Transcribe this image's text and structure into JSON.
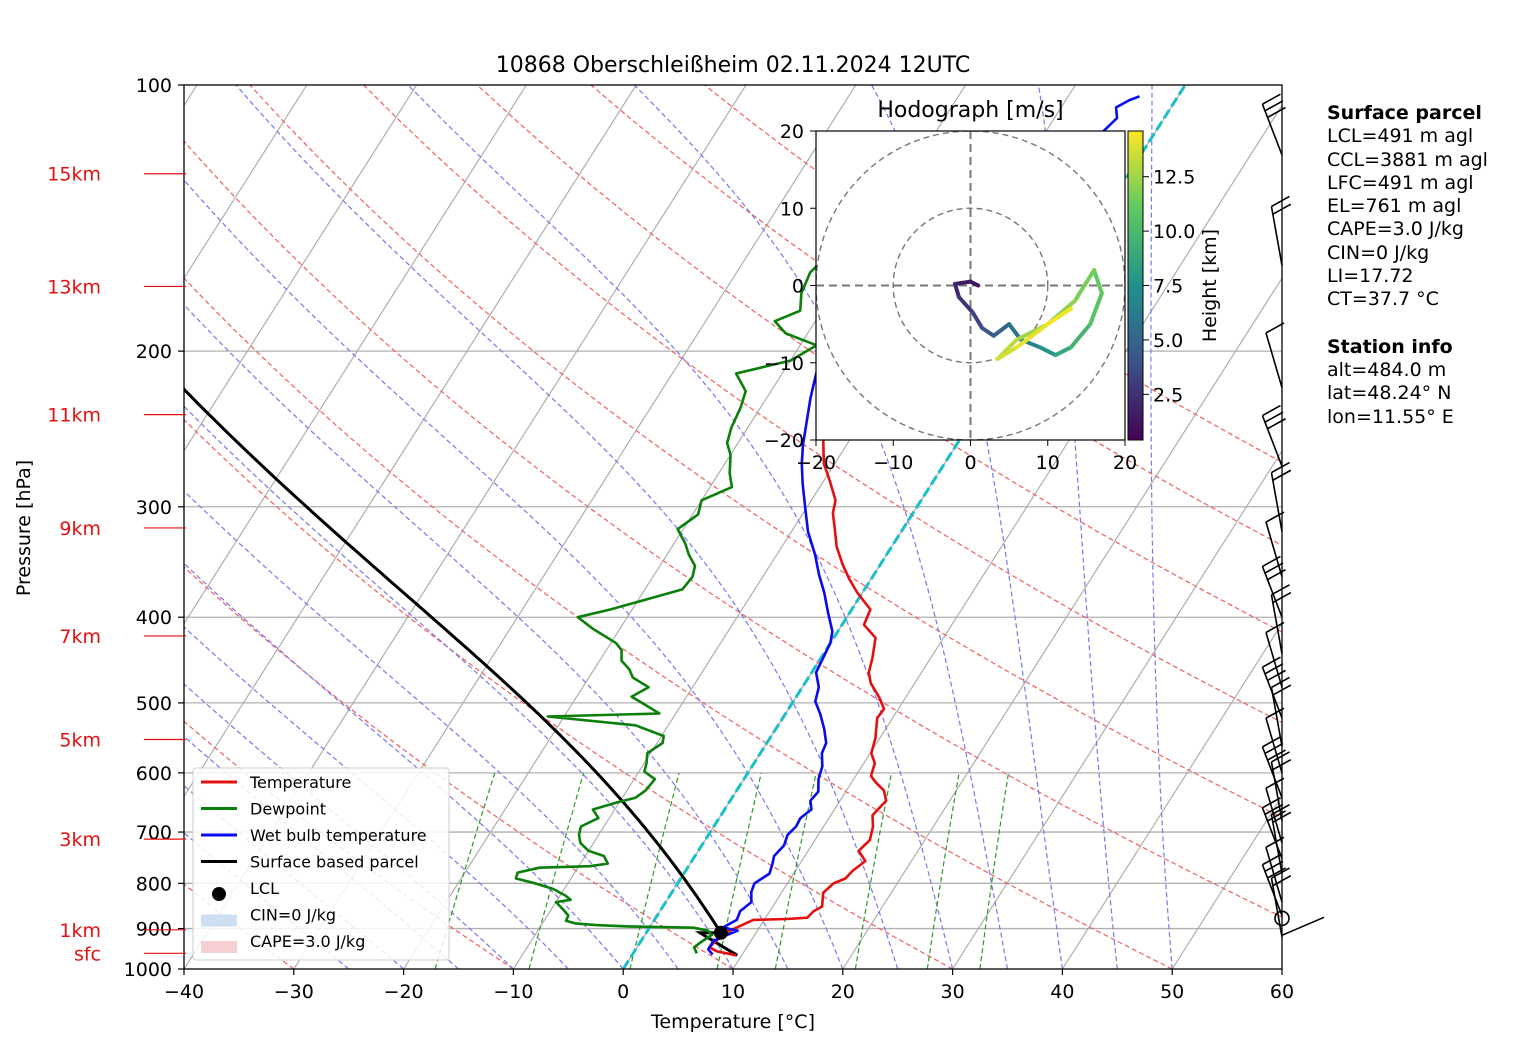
{
  "chart_data": {
    "type": "line",
    "title": "10868 Oberschleißheim 02.11.2024 12UTC",
    "xlabel": "Temperature [°C]",
    "ylabel": "Pressure [hPa]",
    "xlim": [
      -40,
      60
    ],
    "ylim": [
      1000,
      100
    ],
    "y_scale": "log",
    "x_ticks": [
      -40,
      -30,
      -20,
      -10,
      0,
      10,
      20,
      30,
      40,
      50,
      60
    ],
    "y_ticks": [
      1000,
      900,
      800,
      700,
      600,
      500,
      400,
      300,
      200,
      100
    ],
    "height_labels": [
      {
        "label": "sfc",
        "p": 960
      },
      {
        "label": "1km",
        "p": 903
      },
      {
        "label": "3km",
        "p": 713
      },
      {
        "label": "5km",
        "p": 550
      },
      {
        "label": "7km",
        "p": 420
      },
      {
        "label": "9km",
        "p": 317
      },
      {
        "label": "11km",
        "p": 236
      },
      {
        "label": "13km",
        "p": 169
      },
      {
        "label": "15km",
        "p": 126
      }
    ],
    "grid": true,
    "series": [
      {
        "name": "Temperature",
        "color": "#e41010",
        "points": [
          [
            9.5,
            965
          ],
          [
            7.5,
            955
          ],
          [
            6.6,
            945
          ],
          [
            6.8,
            930
          ],
          [
            7.5,
            905
          ],
          [
            9,
            880
          ],
          [
            12,
            878
          ],
          [
            13.8,
            875
          ],
          [
            14,
            860
          ],
          [
            14.5,
            850
          ],
          [
            13.8,
            820
          ],
          [
            14.2,
            800
          ],
          [
            15,
            790
          ],
          [
            15.2,
            775
          ],
          [
            15.8,
            755
          ],
          [
            14.6,
            735
          ],
          [
            15,
            715
          ],
          [
            14.5,
            690
          ],
          [
            13.8,
            670
          ],
          [
            14.2,
            645
          ],
          [
            13.4,
            628
          ],
          [
            12.2,
            615
          ],
          [
            11.4,
            605
          ],
          [
            11,
            585
          ],
          [
            10.1,
            570
          ],
          [
            9.6,
            548
          ],
          [
            8.6,
            520
          ],
          [
            8.7,
            508
          ],
          [
            7.6,
            493
          ],
          [
            6,
            475
          ],
          [
            5.2,
            462
          ],
          [
            4.7,
            445
          ],
          [
            3.8,
            422
          ],
          [
            2,
            408
          ],
          [
            1.7,
            392
          ],
          [
            -0.5,
            375
          ],
          [
            -2,
            362
          ],
          [
            -3.5,
            348
          ],
          [
            -5,
            333
          ],
          [
            -6.2,
            318
          ],
          [
            -7.3,
            305
          ],
          [
            -7.8,
            295
          ],
          [
            -9.5,
            280
          ],
          [
            -11,
            268
          ],
          [
            -12.6,
            250
          ],
          [
            -13.2,
            242
          ],
          [
            -14.6,
            230
          ],
          [
            -15.5,
            218
          ],
          [
            -16.8,
            205
          ]
        ]
      },
      {
        "name": "Dewpoint",
        "color": "#0a7f0a",
        "points": [
          [
            5.8,
            960
          ],
          [
            5.2,
            945
          ],
          [
            5.6,
            930
          ],
          [
            6.1,
            915
          ],
          [
            5.5,
            905
          ],
          [
            4,
            898
          ],
          [
            -2,
            895
          ],
          [
            -5,
            892
          ],
          [
            -7,
            888
          ],
          [
            -8,
            882
          ],
          [
            -8.1,
            870
          ],
          [
            -9,
            855
          ],
          [
            -10,
            840
          ],
          [
            -8.8,
            835
          ],
          [
            -9.5,
            826
          ],
          [
            -11,
            812
          ],
          [
            -13,
            800
          ],
          [
            -15,
            790
          ],
          [
            -15.2,
            778
          ],
          [
            -13.5,
            768
          ],
          [
            -9,
            765
          ],
          [
            -7.5,
            760
          ],
          [
            -8.3,
            745
          ],
          [
            -10,
            735
          ],
          [
            -11.2,
            720
          ],
          [
            -11.8,
            705
          ],
          [
            -12.1,
            690
          ],
          [
            -11,
            675
          ],
          [
            -12,
            660
          ],
          [
            -10.2,
            648
          ],
          [
            -8.8,
            640
          ],
          [
            -8.3,
            628
          ],
          [
            -8.1,
            610
          ],
          [
            -9.5,
            598
          ],
          [
            -9.8,
            585
          ],
          [
            -10.3,
            570
          ],
          [
            -9.5,
            555
          ],
          [
            -9.8,
            545
          ],
          [
            -13,
            530
          ],
          [
            -21.5,
            518
          ],
          [
            -11.5,
            514
          ],
          [
            -13.7,
            500
          ],
          [
            -15,
            492
          ],
          [
            -14,
            480
          ],
          [
            -16,
            468
          ],
          [
            -16.8,
            458
          ],
          [
            -18,
            448
          ],
          [
            -18.6,
            436
          ],
          [
            -19.5,
            428
          ],
          [
            -22.5,
            412
          ],
          [
            -24.5,
            400
          ],
          [
            -22,
            392
          ],
          [
            -19.3,
            382
          ],
          [
            -16.6,
            372
          ],
          [
            -16.4,
            360
          ],
          [
            -16.8,
            350
          ],
          [
            -18,
            340
          ],
          [
            -19,
            330
          ],
          [
            -20.5,
            318
          ],
          [
            -19.5,
            306
          ],
          [
            -20,
            295
          ],
          [
            -18,
            285
          ],
          [
            -19,
            275
          ],
          [
            -20,
            262
          ],
          [
            -21,
            254
          ],
          [
            -21.5,
            244
          ],
          [
            -21.8,
            232
          ],
          [
            -22.3,
            222
          ],
          [
            -24.2,
            212
          ],
          [
            -20,
            205
          ],
          [
            -18.5,
            197
          ],
          [
            -22,
            191
          ],
          [
            -23.7,
            185
          ],
          [
            -22,
            180
          ],
          [
            -22.9,
            172
          ],
          [
            -23.3,
            163
          ],
          [
            -22.8,
            157
          ],
          [
            -21.5,
            150
          ],
          [
            -20.9,
            145
          ],
          [
            -20,
            140
          ],
          [
            -22.6,
            136
          ],
          [
            -26.5,
            132
          ],
          [
            -27,
            126
          ],
          [
            -25.3,
            122
          ],
          [
            -23.5,
            118
          ]
        ]
      },
      {
        "name": "Wet bulb temperature",
        "color": "#0a0aee",
        "points": [
          [
            7.3,
            963
          ],
          [
            6.6,
            950
          ],
          [
            6.6,
            930
          ],
          [
            7.5,
            915
          ],
          [
            8.2,
            905
          ],
          [
            7.2,
            900
          ],
          [
            6.8,
            895
          ],
          [
            7.5,
            880
          ],
          [
            7.3,
            860
          ],
          [
            7.8,
            840
          ],
          [
            7.2,
            818
          ],
          [
            7,
            800
          ],
          [
            7.8,
            780
          ],
          [
            7.5,
            760
          ],
          [
            7.2,
            745
          ],
          [
            7.5,
            725
          ],
          [
            7.2,
            705
          ],
          [
            7.5,
            690
          ],
          [
            7.4,
            675
          ],
          [
            7.9,
            660
          ],
          [
            7.3,
            645
          ],
          [
            7.5,
            630
          ],
          [
            6.8,
            610
          ],
          [
            6.4,
            590
          ],
          [
            5.6,
            570
          ],
          [
            5.4,
            555
          ],
          [
            4.4,
            535
          ],
          [
            3.2,
            515
          ],
          [
            2,
            498
          ],
          [
            1.5,
            480
          ],
          [
            0.4,
            462
          ],
          [
            0.2,
            445
          ],
          [
            0,
            428
          ],
          [
            -0.5,
            415
          ],
          [
            -2,
            395
          ],
          [
            -3.5,
            375
          ],
          [
            -5,
            358
          ],
          [
            -6.5,
            340
          ],
          [
            -8.5,
            320
          ],
          [
            -10.2,
            300
          ],
          [
            -11.8,
            282
          ],
          [
            -13,
            268
          ],
          [
            -14,
            255
          ],
          [
            -15,
            240
          ],
          [
            -16,
            226
          ],
          [
            -16.9,
            212
          ],
          [
            -17.4,
            200
          ],
          [
            -18.1,
            190
          ],
          [
            -18.5,
            180
          ],
          [
            -18.8,
            170
          ],
          [
            -19.5,
            160
          ],
          [
            -19.9,
            150
          ],
          [
            -20.8,
            142
          ],
          [
            -21.8,
            140
          ],
          [
            -18.5,
            138
          ],
          [
            -14.7,
            133
          ],
          [
            -13.2,
            130
          ],
          [
            -10.5,
            126
          ],
          [
            -7.7,
            121
          ],
          [
            -5.5,
            117
          ],
          [
            -4.8,
            113
          ],
          [
            -4.3,
            109
          ],
          [
            -5,
            106
          ],
          [
            -4.2,
            104
          ],
          [
            -3.5,
            103
          ]
        ]
      }
    ],
    "parcel": {
      "name": "Surface based parcel",
      "color": "#000000",
      "surface_p": 965,
      "surface_T": 9.6,
      "lcl_p": 910,
      "lcl_T": 6.8
    },
    "lcl_marker": {
      "name": "LCL",
      "T": 6.8,
      "p": 910
    },
    "isotherm_zero": {
      "T": 0,
      "color": "#1abfc8"
    },
    "shading": [
      {
        "name": "CIN=0 J/kg",
        "color": "#cddff0"
      },
      {
        "name": "CAPE=3.0 J/kg",
        "color": "#f6cfd2"
      }
    ],
    "legend": {
      "position": "bottom-left",
      "entries": [
        "Temperature",
        "Dewpoint",
        "Wet bulb temperature",
        "Surface based parcel",
        "LCL",
        "CIN=0 J/kg",
        "CAPE=3.0 J/kg"
      ]
    },
    "wind_barbs_hPa": [
      965,
      920,
      870,
      840,
      780,
      750,
      720,
      680,
      640,
      600,
      560,
      520,
      480,
      440,
      400,
      360,
      320,
      270,
      220,
      160,
      120
    ],
    "hodograph": {
      "title": "Hodograph [m/s]",
      "xlim": [
        -20,
        20
      ],
      "ylim": [
        -20,
        20
      ],
      "x_ticks": [
        -20,
        -10,
        0,
        10,
        20
      ],
      "y_ticks": [
        20,
        10,
        0,
        -10,
        -20
      ],
      "rings": [
        10,
        20
      ],
      "colorbar_label": "Height [km]",
      "colorbar_ticks": [
        "12.5",
        "10.0",
        "7.5",
        "5.0",
        "2.5"
      ],
      "colormap": "viridis",
      "points": [
        [
          1,
          0,
          0.4
        ],
        [
          0,
          0.5,
          0.8
        ],
        [
          -2,
          0.2,
          1.2
        ],
        [
          -1.5,
          -1.5,
          1.6
        ],
        [
          0.3,
          -3.5,
          2.2
        ],
        [
          1.5,
          -5.5,
          3
        ],
        [
          3,
          -6.5,
          3.8
        ],
        [
          5,
          -5,
          4.5
        ],
        [
          6.5,
          -7,
          5.5
        ],
        [
          9,
          -8,
          6.5
        ],
        [
          11,
          -9,
          7.5
        ],
        [
          13,
          -8,
          8.5
        ],
        [
          15.5,
          -5,
          9.5
        ],
        [
          17,
          -1,
          10.5
        ],
        [
          16,
          2,
          11
        ],
        [
          13.5,
          -2,
          11.5
        ],
        [
          10,
          -5,
          12
        ],
        [
          6,
          -7,
          12.5
        ],
        [
          3.5,
          -9.5,
          13
        ],
        [
          6,
          -8,
          13.5
        ],
        [
          10,
          -5,
          14
        ],
        [
          13,
          -3,
          14.3
        ]
      ]
    }
  },
  "station_panel": {
    "surface_header": "Surface parcel",
    "lcl": "LCL=491 m agl",
    "ccl": "CCL=3881 m agl",
    "lfc": "LFC=491 m agl",
    "el": "EL=761 m agl",
    "cape": "CAPE=3.0 J/kg",
    "cin": "CIN=0 J/kg",
    "li": "LI=17.72",
    "ct": "CT=37.7 °C",
    "station_header": "Station info",
    "alt": "alt=484.0 m",
    "lat": "lat=48.24° N",
    "lon": "lon=11.55° E"
  }
}
